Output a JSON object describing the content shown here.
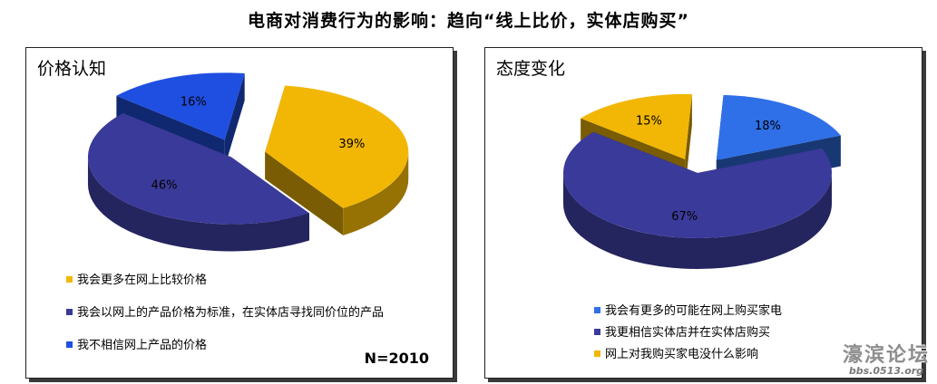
{
  "page": {
    "title": "电商对消费行为的影响：趋向“线上比价，实体店购买”"
  },
  "colors": {
    "yellow": "#F2B705",
    "navy": "#3A3A9A",
    "blue": "#1F4FE0"
  },
  "chart_data": [
    {
      "type": "pie",
      "title": "价格认知",
      "categories": [
        "我会更多在网上比较价格",
        "我会以网上的产品价格为标准，在实体店寻找同价位的产品",
        "我不相信网上产品的价格"
      ],
      "values": [
        39,
        46,
        16
      ],
      "labels": [
        "39%",
        "46%",
        "16%"
      ],
      "colors": [
        "#F2B705",
        "#3A3A9A",
        "#1F4FE0"
      ],
      "note": "N=2010"
    },
    {
      "type": "pie",
      "title": "态度变化",
      "categories": [
        "我会有更多的可能在网上购买家电",
        "我更相信实体店并在实体店购买",
        "网上对我购买家电没什么影响"
      ],
      "values": [
        18,
        67,
        15
      ],
      "labels": [
        "18%",
        "67%",
        "15%"
      ],
      "colors": [
        "#2F6FE8",
        "#3A3A9A",
        "#F2B705"
      ]
    }
  ],
  "watermark": {
    "line1": "濠滨论坛",
    "line2": "bbs.0513.org"
  }
}
